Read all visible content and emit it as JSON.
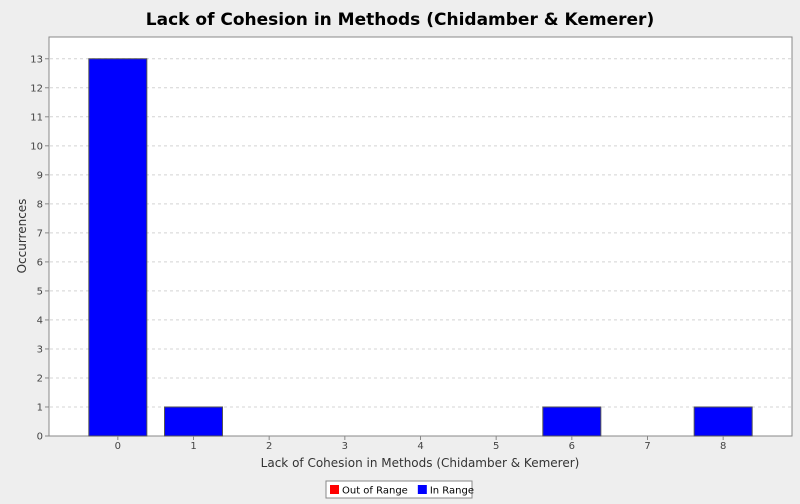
{
  "chart_data": {
    "type": "bar",
    "title": "Lack of Cohesion in Methods (Chidamber & Kemerer)",
    "xlabel": "Lack of Cohesion in Methods (Chidamber & Kemerer)",
    "ylabel": "Occurrences",
    "categories": [
      "0",
      "1",
      "2",
      "3",
      "4",
      "5",
      "6",
      "7",
      "8"
    ],
    "series": [
      {
        "name": "Out of Range",
        "color": "#ff0000",
        "values": [
          0,
          0,
          0,
          0,
          0,
          0,
          0,
          0,
          0
        ]
      },
      {
        "name": "In Range",
        "color": "#0000ff",
        "values": [
          13,
          1,
          0,
          0,
          0,
          0,
          1,
          0,
          1
        ]
      }
    ],
    "ylim": [
      0,
      14
    ],
    "yticks": [
      0,
      1,
      2,
      3,
      4,
      5,
      6,
      7,
      8,
      9,
      10,
      11,
      12,
      13
    ],
    "grid": true,
    "legend_position": "bottom"
  }
}
